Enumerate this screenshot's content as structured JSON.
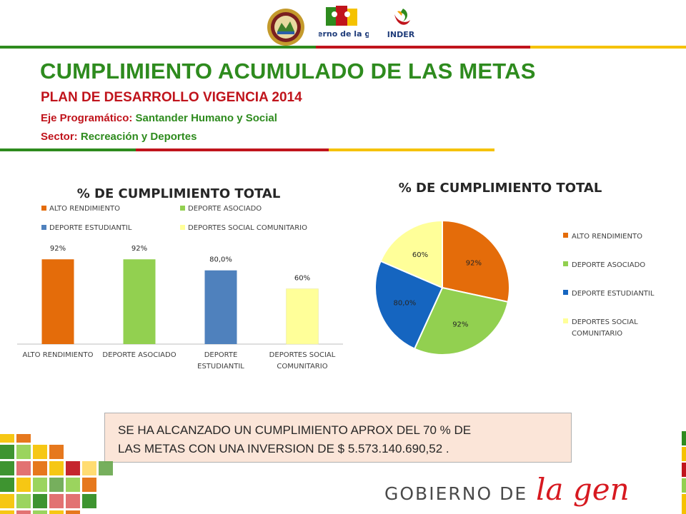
{
  "colors": {
    "title_green": "#2e8b1e",
    "red": "#c0141c",
    "alto_rendimiento": "#e46c0a",
    "deporte_asociado": "#92d050",
    "deporte_estudiantil_bar": "#4f81bd",
    "deporte_estudiantil_pie": "#1565c0",
    "deportes_social": "#ffff99"
  },
  "header": {
    "logos": [
      {
        "name": "department-seal-icon"
      },
      {
        "name": "gobierno-de-la-gente-logo",
        "label": "Gobierno de la gente"
      },
      {
        "name": "inder-logo",
        "label": "INDER"
      }
    ]
  },
  "page": {
    "title": "CUMPLIMIENTO ACUMULADO DE LAS METAS",
    "subtitle": "PLAN DE DESARROLLO  VIGENCIA 2014",
    "eje_key": "Eje Programático:",
    "eje_value": "Santander  Humano  y Social",
    "sector_key": "Sector:",
    "sector_value": "Recreación y Deportes"
  },
  "chart_data": [
    {
      "type": "bar",
      "title": "% DE CUMPLIMIENTO TOTAL",
      "categories": [
        "ALTO RENDIMIENTO",
        "DEPORTE ASOCIADO",
        "DEPORTE ESTUDIANTIL",
        "DEPORTES SOCIAL COMUNITARIO"
      ],
      "category_tick_lines": [
        [
          "ALTO RENDIMIENTO"
        ],
        [
          "DEPORTE ASOCIADO"
        ],
        [
          "DEPORTE",
          "ESTUDIANTIL"
        ],
        [
          "DEPORTES SOCIAL",
          "COMUNITARIO"
        ]
      ],
      "values": [
        92,
        92,
        80,
        60
      ],
      "data_labels": [
        "92%",
        "92%",
        "80,0%",
        "60%"
      ],
      "colors": [
        "#e46c0a",
        "#92d050",
        "#4f81bd",
        "#ffff99"
      ],
      "legend": [
        "ALTO RENDIMIENTO",
        "DEPORTE ASOCIADO",
        "DEPORTE ESTUDIANTIL",
        "DEPORTES SOCIAL COMUNITARIO"
      ],
      "legend_position": "top",
      "ylim": [
        0,
        110
      ],
      "grid": false
    },
    {
      "type": "pie",
      "title": "% DE CUMPLIMIENTO TOTAL",
      "labels": [
        "ALTO RENDIMIENTO",
        "DEPORTE ASOCIADO",
        "DEPORTE ESTUDIANTIL",
        "DEPORTES SOCIAL COMUNITARIO"
      ],
      "legend_lines": [
        [
          "ALTO RENDIMIENTO"
        ],
        [
          "DEPORTE ASOCIADO"
        ],
        [
          "DEPORTE ESTUDIANTIL"
        ],
        [
          "DEPORTES SOCIAL",
          "COMUNITARIO"
        ]
      ],
      "values": [
        92,
        92,
        80,
        60
      ],
      "data_labels": [
        "92%",
        "92%",
        "80,0%",
        "60%"
      ],
      "colors": [
        "#e46c0a",
        "#92d050",
        "#1565c0",
        "#ffff99"
      ],
      "legend_position": "right"
    }
  ],
  "summary": {
    "line1": "SE HA ALCANZADO UN CUMPLIMIENTO APROX DEL  70 %  DE",
    "line2": "LAS METAS CON UNA INVERSION DE  $ 5.573.140.690,52 ."
  },
  "footer": {
    "brand_text": "GOBIERNO DE",
    "brand_script": "la gente"
  }
}
